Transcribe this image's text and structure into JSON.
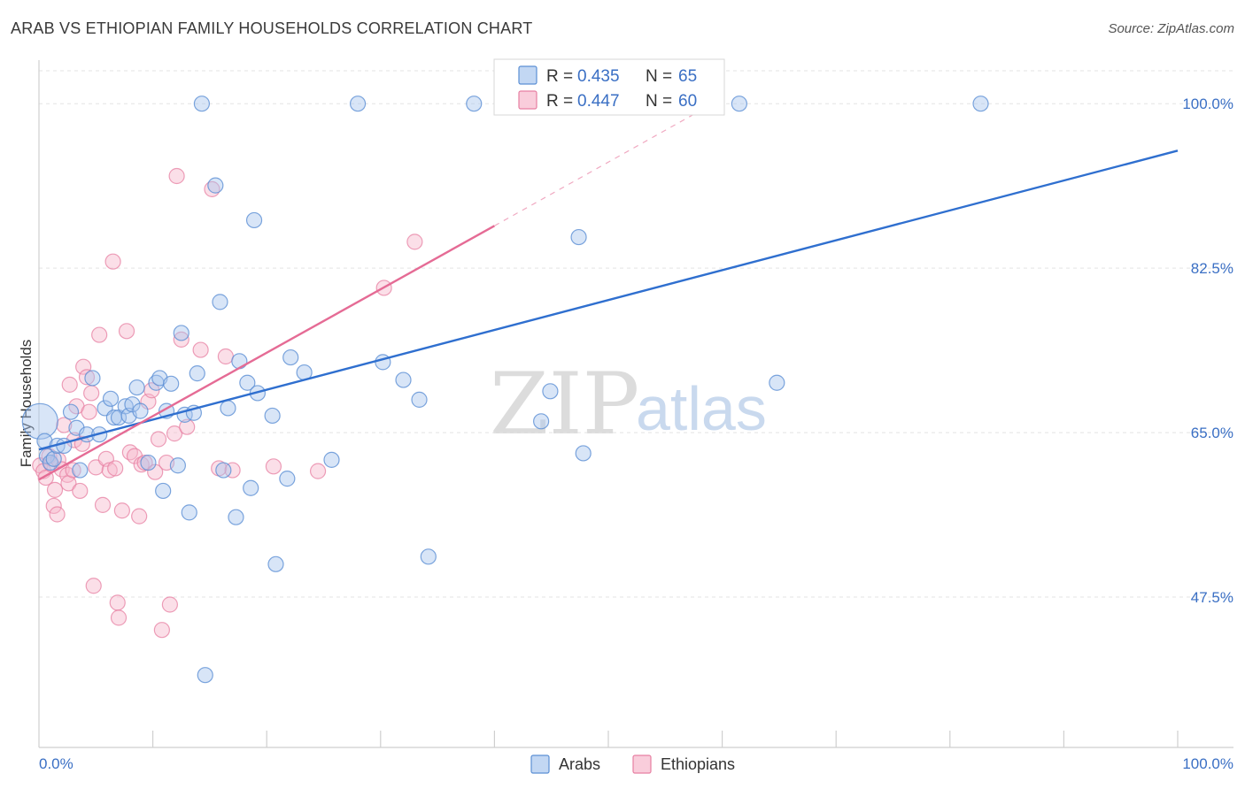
{
  "header": {
    "title": "ARAB VS ETHIOPIAN FAMILY HOUSEHOLDS CORRELATION CHART",
    "source": "Source: ZipAtlas.com"
  },
  "watermark": {
    "zip": "ZIP",
    "atlas": "atlas"
  },
  "legend_top": [
    {
      "r_label": "R = ",
      "r_value": "0.435",
      "n_label": "N = ",
      "n_value": "65"
    },
    {
      "r_label": "R = ",
      "r_value": "0.447",
      "n_label": "N = ",
      "n_value": "60"
    }
  ],
  "colors": {
    "arab_fill": "#a8c6ee",
    "arab_stroke": "#5b8fd4",
    "arab_line": "#2f6fcf",
    "eth_fill": "#f7b8cc",
    "eth_stroke": "#e77fa2",
    "eth_line": "#e56b95",
    "grid": "#e3e3e3",
    "axis_label": "#3a6fc4"
  },
  "chart_data": {
    "type": "scatter",
    "title": "ARAB VS ETHIOPIAN FAMILY HOUSEHOLDS CORRELATION CHART",
    "xlabel": "",
    "ylabel": "Family Households",
    "xlim": [
      0,
      100
    ],
    "ylim": [
      31.5,
      103.5
    ],
    "x_tick_labels": [
      "0.0%",
      "100.0%"
    ],
    "y_ticks": [
      47.5,
      65.0,
      82.5,
      100.0
    ],
    "y_tick_labels": [
      "47.5%",
      "65.0%",
      "82.5%",
      "100.0%"
    ],
    "legend": [
      "Arabs",
      "Ethiopians"
    ],
    "series": [
      {
        "name": "Arabs",
        "R": 0.435,
        "N": 65,
        "trend": {
          "x": [
            0,
            100
          ],
          "y": [
            63.2,
            95.0
          ]
        },
        "points": [
          [
            0.1,
            66.2
          ],
          [
            0.5,
            64.1
          ],
          [
            0.7,
            62.5
          ],
          [
            1.0,
            61.8
          ],
          [
            1.3,
            62.2
          ],
          [
            1.6,
            63.6
          ],
          [
            2.2,
            63.6
          ],
          [
            2.8,
            67.2
          ],
          [
            3.3,
            65.5
          ],
          [
            3.6,
            61.0
          ],
          [
            4.2,
            64.8
          ],
          [
            4.7,
            70.8
          ],
          [
            5.3,
            64.8
          ],
          [
            5.8,
            67.6
          ],
          [
            6.3,
            68.6
          ],
          [
            6.6,
            66.6
          ],
          [
            7.0,
            66.6
          ],
          [
            7.6,
            67.8
          ],
          [
            7.9,
            66.8
          ],
          [
            8.2,
            68.0
          ],
          [
            8.6,
            69.8
          ],
          [
            8.9,
            67.3
          ],
          [
            9.6,
            61.8
          ],
          [
            10.3,
            70.3
          ],
          [
            10.6,
            70.8
          ],
          [
            10.9,
            58.8
          ],
          [
            11.2,
            67.3
          ],
          [
            11.6,
            70.2
          ],
          [
            12.2,
            61.5
          ],
          [
            12.5,
            75.6
          ],
          [
            12.8,
            66.9
          ],
          [
            13.2,
            56.5
          ],
          [
            13.6,
            67.1
          ],
          [
            13.9,
            71.3
          ],
          [
            14.3,
            100.0
          ],
          [
            14.6,
            39.2
          ],
          [
            15.5,
            91.3
          ],
          [
            15.9,
            78.9
          ],
          [
            16.2,
            61.0
          ],
          [
            16.6,
            67.6
          ],
          [
            17.3,
            56.0
          ],
          [
            17.6,
            72.6
          ],
          [
            18.3,
            70.3
          ],
          [
            18.6,
            59.1
          ],
          [
            18.9,
            87.6
          ],
          [
            19.2,
            69.2
          ],
          [
            20.5,
            66.8
          ],
          [
            20.8,
            51.0
          ],
          [
            21.8,
            60.1
          ],
          [
            22.1,
            73.0
          ],
          [
            23.3,
            71.4
          ],
          [
            25.7,
            62.1
          ],
          [
            28.0,
            100.0
          ],
          [
            30.2,
            72.5
          ],
          [
            32.0,
            70.6
          ],
          [
            33.4,
            68.5
          ],
          [
            34.2,
            51.8
          ],
          [
            38.2,
            100.0
          ],
          [
            44.1,
            66.2
          ],
          [
            44.9,
            69.4
          ],
          [
            47.4,
            85.8
          ],
          [
            47.8,
            62.8
          ],
          [
            61.5,
            100.0
          ],
          [
            64.8,
            70.3
          ],
          [
            82.7,
            100.0
          ]
        ]
      },
      {
        "name": "Ethiopians",
        "R": 0.447,
        "N": 60,
        "trend": {
          "x": [
            0,
            40
          ],
          "y": [
            60.0,
            87.0
          ]
        },
        "trend_dashed": {
          "x": [
            40,
            58
          ],
          "y": [
            87.0,
            99.2
          ]
        },
        "points": [
          [
            0.1,
            61.5
          ],
          [
            0.4,
            60.9
          ],
          [
            0.6,
            60.2
          ],
          [
            0.9,
            62.5
          ],
          [
            1.1,
            61.6
          ],
          [
            1.3,
            57.2
          ],
          [
            1.4,
            58.9
          ],
          [
            1.6,
            56.3
          ],
          [
            1.7,
            62.1
          ],
          [
            2.0,
            61.1
          ],
          [
            2.2,
            65.8
          ],
          [
            2.5,
            60.5
          ],
          [
            2.6,
            59.6
          ],
          [
            2.7,
            70.1
          ],
          [
            3.0,
            61.0
          ],
          [
            3.1,
            64.2
          ],
          [
            3.3,
            67.8
          ],
          [
            3.6,
            58.8
          ],
          [
            3.8,
            63.8
          ],
          [
            3.9,
            72.0
          ],
          [
            4.2,
            70.9
          ],
          [
            4.4,
            67.2
          ],
          [
            4.6,
            69.2
          ],
          [
            4.8,
            48.7
          ],
          [
            5.0,
            61.3
          ],
          [
            5.3,
            75.4
          ],
          [
            5.6,
            57.3
          ],
          [
            5.9,
            62.2
          ],
          [
            6.2,
            61.0
          ],
          [
            6.5,
            83.2
          ],
          [
            6.7,
            61.2
          ],
          [
            6.9,
            46.9
          ],
          [
            7.0,
            45.3
          ],
          [
            7.3,
            56.7
          ],
          [
            7.7,
            75.8
          ],
          [
            8.0,
            62.9
          ],
          [
            8.4,
            62.5
          ],
          [
            8.8,
            56.1
          ],
          [
            9.0,
            61.6
          ],
          [
            9.3,
            61.8
          ],
          [
            9.6,
            68.3
          ],
          [
            9.9,
            69.5
          ],
          [
            10.2,
            60.8
          ],
          [
            10.5,
            64.3
          ],
          [
            10.8,
            44.0
          ],
          [
            11.2,
            61.8
          ],
          [
            11.5,
            46.7
          ],
          [
            11.9,
            64.9
          ],
          [
            12.1,
            92.3
          ],
          [
            12.5,
            74.9
          ],
          [
            13.0,
            65.6
          ],
          [
            14.2,
            73.8
          ],
          [
            15.2,
            90.9
          ],
          [
            15.8,
            61.2
          ],
          [
            16.4,
            73.1
          ],
          [
            17.0,
            61.0
          ],
          [
            20.6,
            61.4
          ],
          [
            24.5,
            60.9
          ],
          [
            30.3,
            80.4
          ],
          [
            33.0,
            85.3
          ]
        ]
      }
    ]
  }
}
